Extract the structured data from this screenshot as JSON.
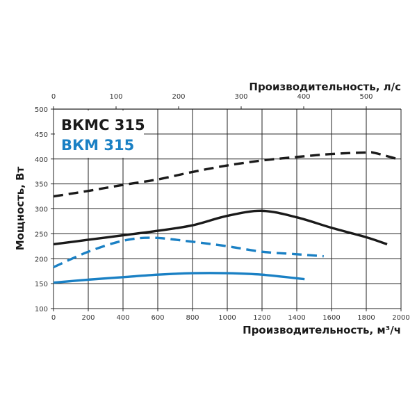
{
  "chart_data": {
    "type": "line",
    "xlabel": "Производительность, м³/ч",
    "x2label": "Производительность, л/с",
    "ylabel": "Мощность, Вт",
    "xlim": [
      0,
      2000
    ],
    "x2lim": [
      0,
      555.6
    ],
    "ylim": [
      100,
      500
    ],
    "x_ticks": [
      0,
      200,
      400,
      600,
      800,
      1000,
      1200,
      1400,
      1600,
      1800,
      2000
    ],
    "x2_ticks": [
      0,
      100,
      200,
      300,
      400,
      500
    ],
    "y_ticks": [
      100,
      150,
      200,
      250,
      300,
      350,
      400,
      450,
      500
    ],
    "grid": true,
    "legend": {
      "placement": "top-left",
      "entries": [
        {
          "label": "ВКМС 315",
          "color": "#1a1a1a"
        },
        {
          "label": "ВКМ 315",
          "color": "#1a80c4"
        }
      ]
    },
    "series": [
      {
        "model": "ВКМС 315",
        "color": "#1a1a1a",
        "style": "dashed",
        "x": [
          0,
          200,
          400,
          600,
          800,
          1000,
          1200,
          1400,
          1600,
          1800,
          1850,
          1990
        ],
        "y": [
          325,
          336,
          348,
          359,
          374,
          387,
          397,
          404,
          410,
          413,
          412,
          399
        ]
      },
      {
        "model": "ВКМС 315",
        "color": "#1a1a1a",
        "style": "solid",
        "x": [
          0,
          200,
          400,
          600,
          800,
          1000,
          1200,
          1400,
          1600,
          1800,
          1920
        ],
        "y": [
          229,
          238,
          247,
          256,
          267,
          286,
          296,
          283,
          262,
          243,
          229
        ]
      },
      {
        "model": "ВКМ 315",
        "color": "#1a80c4",
        "style": "dashed",
        "x": [
          0,
          200,
          400,
          570,
          800,
          1000,
          1200,
          1400,
          1555
        ],
        "y": [
          183,
          214,
          236,
          242,
          234,
          225,
          214,
          209,
          205
        ]
      },
      {
        "model": "ВКМ 315",
        "color": "#1a80c4",
        "style": "solid",
        "x": [
          0,
          200,
          400,
          600,
          800,
          1000,
          1200,
          1445
        ],
        "y": [
          152,
          158,
          163,
          168,
          171,
          171,
          168,
          159
        ]
      }
    ]
  }
}
